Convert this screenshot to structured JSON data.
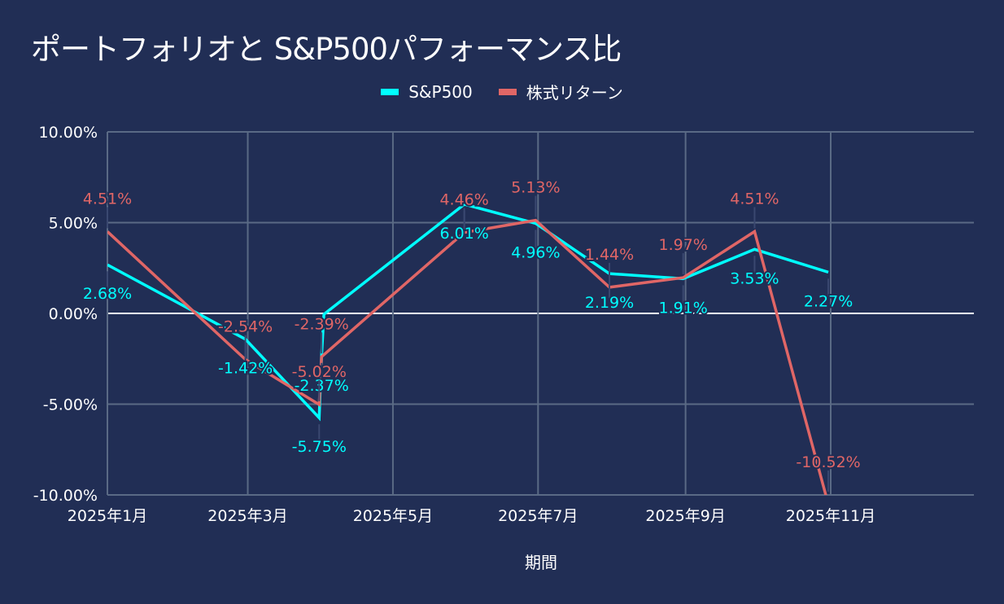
{
  "chart_data": {
    "type": "line",
    "title": "ポートフォリオと S&P500パフォーマンス比",
    "xlabel": "期間",
    "ylabel": "",
    "ylim": [
      -10,
      10
    ],
    "yticks": [
      "10.00%",
      "5.00%",
      "0.00%",
      "-5.00%",
      "-10.00%"
    ],
    "ytick_values": [
      10,
      5,
      0,
      -5,
      -10
    ],
    "xticks": [
      "2025年1月",
      "2025年3月",
      "2025年5月",
      "2025年7月",
      "2025年9月",
      "2025年11月"
    ],
    "xtick_dates": [
      "2025-01-01",
      "2025-03-01",
      "2025-05-01",
      "2025-07-01",
      "2025-09-01",
      "2025-11-01"
    ],
    "xlim": [
      "2025-01-01",
      "2025-12-31"
    ],
    "grid": true,
    "legend_position": "top-center",
    "series": [
      {
        "name": "S&P500",
        "color": "#00ffff",
        "points": [
          {
            "date": "2025-01-01",
            "value": 2.68,
            "label": "2.68%"
          },
          {
            "date": "2025-02-28",
            "value": -1.42,
            "label": "-1.42%"
          },
          {
            "date": "2025-03-31",
            "value": -5.75,
            "label": "-5.75%"
          },
          {
            "date": "2025-04-01",
            "value": -2.37,
            "label": "-2.37%"
          },
          {
            "date": "2025-04-02",
            "value": -0.05,
            "label": ""
          },
          {
            "date": "2025-05-31",
            "value": 6.01,
            "label": "6.01%"
          },
          {
            "date": "2025-06-30",
            "value": 4.96,
            "label": "4.96%"
          },
          {
            "date": "2025-07-31",
            "value": 2.19,
            "label": "2.19%"
          },
          {
            "date": "2025-08-31",
            "value": 1.91,
            "label": "1.91%"
          },
          {
            "date": "2025-09-30",
            "value": 3.53,
            "label": "3.53%"
          },
          {
            "date": "2025-10-31",
            "value": 2.27,
            "label": "2.27%"
          }
        ]
      },
      {
        "name": "株式リターン",
        "color": "#e06666",
        "points": [
          {
            "date": "2025-01-01",
            "value": 4.51,
            "label": "4.51%"
          },
          {
            "date": "2025-02-28",
            "value": -2.54,
            "label": "-2.54%"
          },
          {
            "date": "2025-03-31",
            "value": -5.02,
            "label": "-5.02%"
          },
          {
            "date": "2025-04-01",
            "value": -2.39,
            "label": "-2.39%"
          },
          {
            "date": "2025-05-31",
            "value": 4.46,
            "label": "4.46%"
          },
          {
            "date": "2025-06-30",
            "value": 5.13,
            "label": "5.13%"
          },
          {
            "date": "2025-07-31",
            "value": 1.44,
            "label": "1.44%"
          },
          {
            "date": "2025-08-31",
            "value": 1.97,
            "label": "1.97%"
          },
          {
            "date": "2025-09-30",
            "value": 4.51,
            "label": "4.51%"
          },
          {
            "date": "2025-10-31",
            "value": -10.52,
            "label": "-10.52%"
          }
        ]
      }
    ]
  },
  "colors": {
    "background": "#212e55",
    "grid": "#5a6a85",
    "zero_line": "#ffffff"
  }
}
